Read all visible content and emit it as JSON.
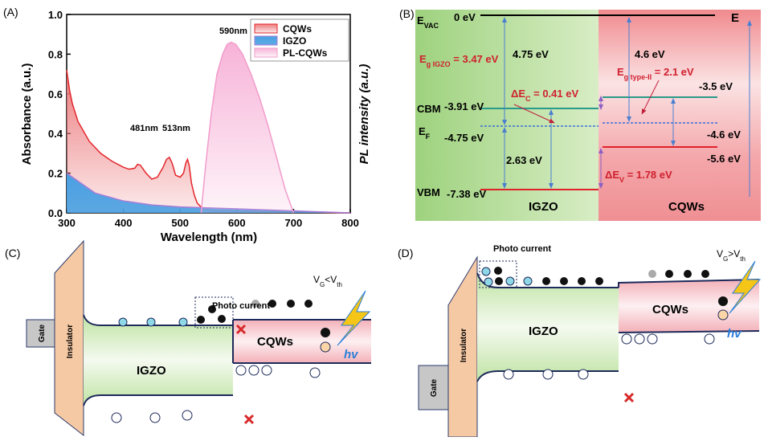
{
  "chart_data": {
    "type": "line",
    "panel_label": "(A)",
    "x_label": "Wavelength (nm)",
    "y_label": "Absorbance (a.u.)",
    "y2_label": "PL intensity (a.u.)",
    "xlim": [
      300,
      800
    ],
    "xticks": [
      300,
      400,
      500,
      600,
      700,
      800
    ],
    "ylim": [
      0,
      1
    ],
    "yticks": [
      {
        "value": 0,
        "label": "0.0"
      },
      0.2,
      0.4,
      0.6,
      0.8,
      {
        "value": 1,
        "label": "1.0"
      }
    ],
    "annotations": [
      "590nm",
      "481nm",
      "513nm"
    ],
    "series": [
      {
        "name": "CQWs",
        "color": "#e3262b",
        "fill": "#ec7a7d",
        "x": [
          300,
          305,
          310,
          320,
          340,
          360,
          380,
          400,
          410,
          420,
          425,
          430,
          440,
          450,
          460,
          470,
          476,
          481,
          486,
          492,
          500,
          506,
          510,
          513,
          516,
          520,
          525,
          530,
          540,
          560,
          600,
          700,
          800
        ],
        "values": [
          0.72,
          0.62,
          0.55,
          0.46,
          0.36,
          0.3,
          0.26,
          0.23,
          0.22,
          0.225,
          0.245,
          0.24,
          0.2,
          0.17,
          0.18,
          0.23,
          0.27,
          0.28,
          0.25,
          0.19,
          0.18,
          0.2,
          0.25,
          0.27,
          0.24,
          0.15,
          0.09,
          0.05,
          0.02,
          0.01,
          0.01,
          0.005,
          0.0
        ]
      },
      {
        "name": "IGZO",
        "color": "#a77bd6",
        "fill": "#4aa0e2",
        "x": [
          300,
          320,
          350,
          400,
          450,
          500,
          600,
          700,
          800
        ],
        "values": [
          0.2,
          0.16,
          0.1,
          0.06,
          0.04,
          0.03,
          0.02,
          0.01,
          0.0
        ]
      },
      {
        "name": "PL-CQWs",
        "color": "#f29ccb",
        "fill": "#f7b3d8",
        "x": [
          537,
          545,
          555,
          565,
          575,
          583,
          590,
          598,
          610,
          625,
          640,
          655,
          670,
          685,
          695,
          700
        ],
        "values": [
          0.0,
          0.24,
          0.5,
          0.7,
          0.8,
          0.85,
          0.86,
          0.85,
          0.8,
          0.7,
          0.58,
          0.44,
          0.28,
          0.12,
          0.04,
          0.0
        ]
      }
    ]
  },
  "panel_b": {
    "label": "(B)",
    "e_vac": {
      "main": "E",
      "sub": "VAC"
    },
    "zero": "0 eV",
    "e": "E",
    "igzo_wf": "4.75 eV",
    "cqw_wf": "4.6 eV",
    "eg_igzo": {
      "main": "E",
      "sub": "g IGZO",
      "rest": " = 3.47 eV"
    },
    "eg_type2": {
      "main": "E",
      "sub": "g type-II",
      "rest": " = 2.1 eV"
    },
    "cqw_cbm": "-3.5 eV",
    "dec": {
      "main": "ΔE",
      "sub": "C",
      "rest": " = 0.41 eV"
    },
    "cbm": "CBM",
    "igzo_cbm": "-3.91 eV",
    "ef": {
      "main": "E",
      "sub": "F"
    },
    "igzo_ef": "-4.75 eV",
    "cqw_ef": "-4.6 eV",
    "igzo_ef_vb": "2.63 eV",
    "cqw_vbm": "-5.6 eV",
    "dev": {
      "main": "ΔE",
      "sub": "V",
      "rest": " = 1.78 eV"
    },
    "vbm": "VBM",
    "igzo_vbm": "-7.38 eV",
    "igzo": "IGZO",
    "cqws": "CQWs"
  },
  "panel_c": {
    "label": "(C)",
    "gate": "Gate",
    "insulator": "Insulator",
    "photo_current": "Photo current",
    "vg": {
      "main": "V",
      "sub": "G",
      "mid": "<V",
      "sub2": "th"
    },
    "cqws": "CQWs",
    "igzo": "IGZO",
    "hv": "hv"
  },
  "panel_d": {
    "label": "(D)",
    "gate": "Gate",
    "insulator": "Insulator",
    "photo_current": "Photo current",
    "vg": {
      "main": "V",
      "sub": "G",
      "mid": ">V",
      "sub2": "th"
    },
    "cqws": "CQWs",
    "igzo": "IGZO",
    "hv": "hv"
  }
}
